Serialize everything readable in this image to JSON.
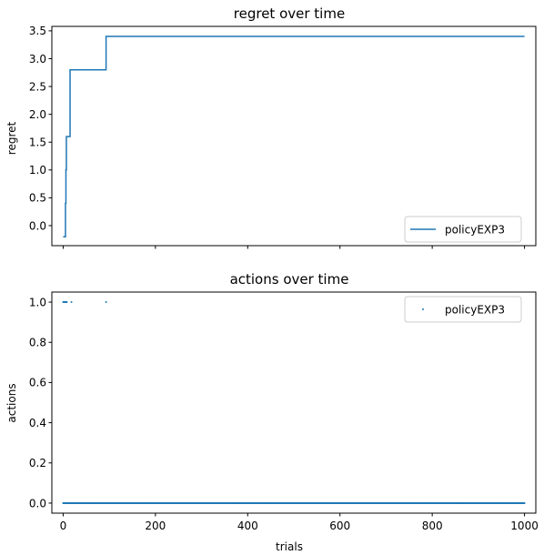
{
  "chart_data": [
    {
      "type": "line",
      "title": "regret over time",
      "xlabel": "",
      "ylabel": "regret",
      "xlim": [
        -24.5,
        1024.5
      ],
      "ylim": [
        -0.36,
        3.58
      ],
      "yticks": [
        0.0,
        0.5,
        1.0,
        1.5,
        2.0,
        2.5,
        3.0,
        3.5
      ],
      "ytick_labels": [
        "0.0",
        "0.5",
        "1.0",
        "1.5",
        "2.0",
        "2.5",
        "3.0",
        "3.5"
      ],
      "xticks": [
        0,
        200,
        400,
        600,
        800,
        1000
      ],
      "xtick_labels_shown": false,
      "grid": false,
      "legend_position": "lower-right",
      "series": [
        {
          "name": "policyEXP3",
          "color": "#1f77b4",
          "x": [
            0,
            5,
            5,
            6,
            6,
            7,
            7,
            8,
            8,
            15,
            15,
            18,
            18,
            93,
            93,
            1000
          ],
          "y": [
            -0.2,
            -0.2,
            0.4,
            0.4,
            1.0,
            1.0,
            1.6,
            1.6,
            1.6,
            1.6,
            2.8,
            2.8,
            2.8,
            2.8,
            3.4,
            3.4
          ]
        }
      ]
    },
    {
      "type": "scatter",
      "title": "actions over time",
      "xlabel": "trials",
      "ylabel": "actions",
      "xlim": [
        -24.5,
        1024.5
      ],
      "ylim": [
        -0.05,
        1.05
      ],
      "yticks": [
        0.0,
        0.2,
        0.4,
        0.6,
        0.8,
        1.0
      ],
      "ytick_labels": [
        "0.0",
        "0.2",
        "0.4",
        "0.6",
        "0.8",
        "1.0"
      ],
      "xticks": [
        0,
        200,
        400,
        600,
        800,
        1000
      ],
      "xtick_labels": [
        "0",
        "200",
        "400",
        "600",
        "800",
        "1000"
      ],
      "grid": false,
      "legend_position": "top-right",
      "series": [
        {
          "name": "policyEXP3",
          "color": "#1f77b4",
          "points_at_1": [
            0,
            1,
            2,
            3,
            4,
            5,
            6,
            7,
            8,
            18,
            93
          ],
          "points_at_0_range": [
            0,
            1000
          ],
          "points_at_0_count": 989
        }
      ]
    }
  ]
}
